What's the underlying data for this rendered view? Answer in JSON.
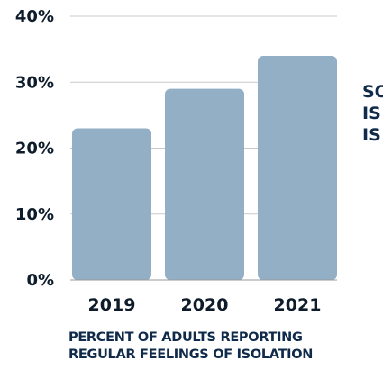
{
  "chart_data": {
    "type": "bar",
    "categories": [
      "2019",
      "2020",
      "2021"
    ],
    "values": [
      23,
      29,
      34
    ],
    "ylim": [
      0,
      40
    ],
    "y_ticks": [
      "0%",
      "10%",
      "20%",
      "30%",
      "40%"
    ],
    "grid": true,
    "colors": {
      "bar": "#93afc6",
      "grid": "#c9c9c9",
      "text": "#0d1b2a",
      "accent": "#0f2a4a"
    }
  },
  "caption": {
    "line1": "PERCENT OF ADULTS REPORTING",
    "line2": "REGULAR FEELINGS OF ISOLATION"
  },
  "side_text": [
    "SO",
    "IS",
    "IS"
  ]
}
